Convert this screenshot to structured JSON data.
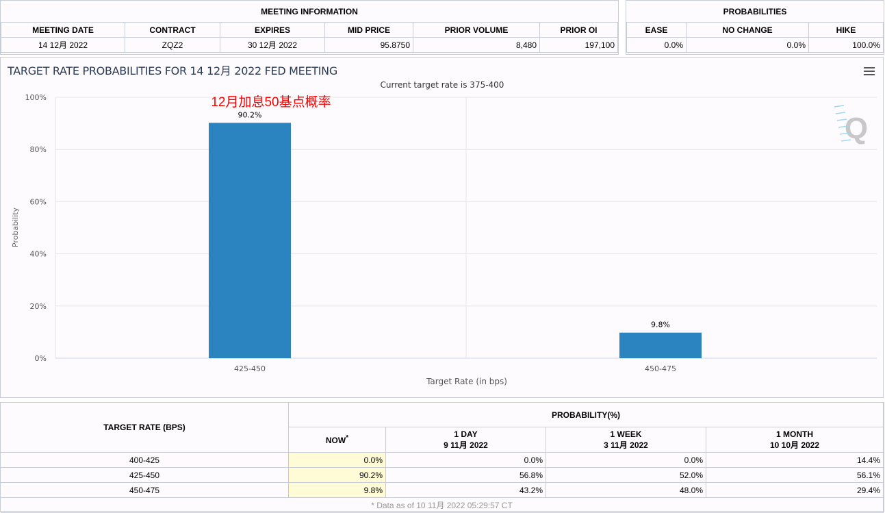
{
  "meeting_info": {
    "title": "MEETING INFORMATION",
    "headers": [
      "MEETING DATE",
      "CONTRACT",
      "EXPIRES",
      "MID PRICE",
      "PRIOR VOLUME",
      "PRIOR OI"
    ],
    "row": [
      "14 12月 2022",
      "ZQZ2",
      "30 12月 2022",
      "95.8750",
      "8,480",
      "197,100"
    ]
  },
  "probabilities": {
    "title": "PROBABILITIES",
    "headers": [
      "EASE",
      "NO CHANGE",
      "HIKE"
    ],
    "row": [
      "0.0%",
      "0.0%",
      "100.0%"
    ]
  },
  "chart": {
    "title": "TARGET RATE PROBABILITIES FOR 14 12月 2022 FED MEETING",
    "menu_icon": "hamburger-menu-icon",
    "annotation": "12月加息50基点概率",
    "annotation_color": "#ff0000"
  },
  "chart_data": {
    "type": "bar",
    "title": "",
    "subtitle": "Current target rate is 375-400",
    "xlabel": "Target Rate (in bps)",
    "ylabel": "Probability",
    "categories": [
      "425-450",
      "450-475"
    ],
    "values": [
      90.2,
      9.8
    ],
    "data_labels": [
      "90.2%",
      "9.8%"
    ],
    "ylim": [
      0,
      100
    ],
    "yticks": [
      "0%",
      "20%",
      "40%",
      "60%",
      "80%",
      "100%"
    ],
    "bar_color": "#2b83c0",
    "grid": true
  },
  "history": {
    "col_rate": "TARGET RATE (BPS)",
    "col_prob": "PROBABILITY(%)",
    "sub": [
      {
        "l1": "NOW",
        "l2": "*"
      },
      {
        "l1": "1 DAY",
        "l2": "9 11月 2022"
      },
      {
        "l1": "1 WEEK",
        "l2": "3 11月 2022"
      },
      {
        "l1": "1 MONTH",
        "l2": "10 10月 2022"
      }
    ],
    "rows": [
      [
        "400-425",
        "0.0%",
        "0.0%",
        "0.0%",
        "14.4%"
      ],
      [
        "425-450",
        "90.2%",
        "56.8%",
        "52.0%",
        "56.1%"
      ],
      [
        "450-475",
        "9.8%",
        "43.2%",
        "48.0%",
        "29.4%"
      ]
    ],
    "footnote": "* Data as of 10 11月 2022 05:29:57 CT"
  }
}
